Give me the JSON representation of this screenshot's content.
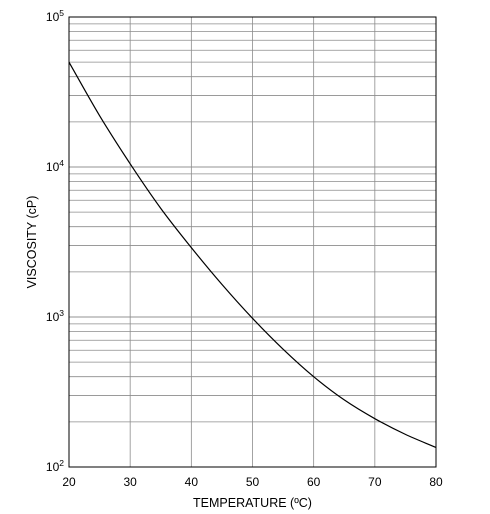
{
  "chart_data": {
    "type": "line",
    "xlabel": "TEMPERATURE (ºC)",
    "ylabel": "VISCOSITY (cP)",
    "xlim": [
      20,
      80
    ],
    "ylim": [
      100,
      100000
    ],
    "yscale": "log",
    "grid": true,
    "x_ticks": [
      20,
      30,
      40,
      50,
      60,
      70,
      80
    ],
    "y_ticks": [
      {
        "base": "10",
        "exp": "2"
      },
      {
        "base": "10",
        "exp": "3"
      },
      {
        "base": "10",
        "exp": "4"
      },
      {
        "base": "10",
        "exp": "5"
      }
    ],
    "series": [
      {
        "x": [
          20,
          25,
          30,
          35,
          40,
          45,
          50,
          55,
          60,
          65,
          70,
          75,
          80
        ],
        "y": [
          50000,
          22000,
          10500,
          5300,
          2900,
          1650,
          980,
          610,
          400,
          280,
          210,
          165,
          135
        ]
      }
    ]
  }
}
